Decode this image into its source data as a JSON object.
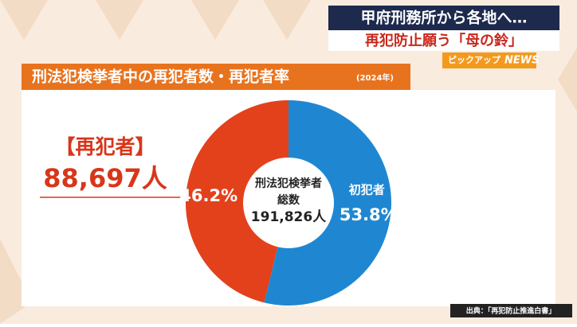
{
  "header": {
    "headline": "甲府刑務所から各地へ…",
    "subhead": "再犯防止願う「母の鈴」",
    "badge": "ピックアップ",
    "badge_suffix": "NEWS"
  },
  "chart_data": {
    "type": "pie",
    "title": "刑法犯検挙者中の再犯者数・再犯者率",
    "subtitle": "(2024年)",
    "categories": [
      "【再犯者】",
      "初犯者"
    ],
    "values": [
      46.2,
      53.8
    ],
    "value_labels": [
      "46.2%",
      "53.8%"
    ],
    "colors": [
      "#e2411c",
      "#1f87d2"
    ],
    "donut": true,
    "callout": "88,697人",
    "center_label": [
      "刑法犯検挙者",
      "総数",
      "191,826人"
    ],
    "source": "出典：「再犯防止推進白書」"
  }
}
